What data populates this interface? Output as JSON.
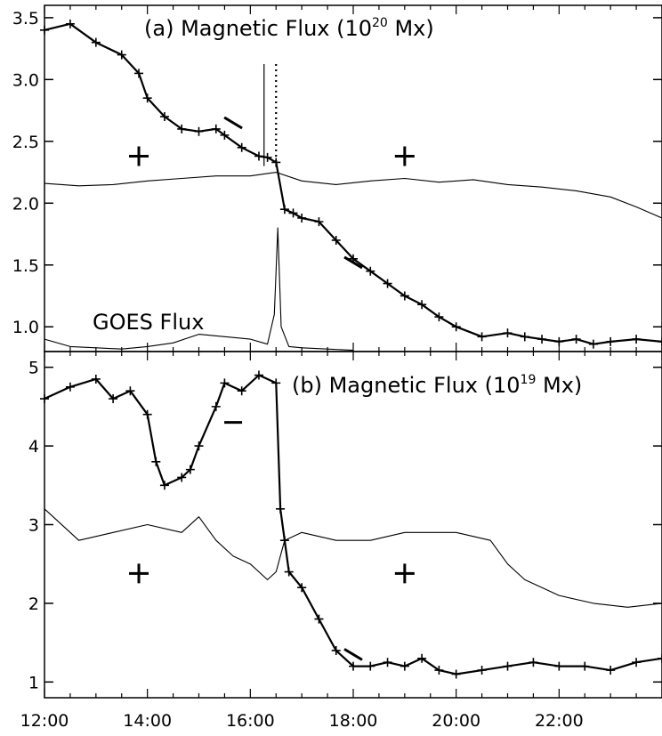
{
  "chart_data": [
    {
      "type": "line",
      "panel": "a",
      "title": {
        "prefix": "(a) Magnetic Flux (10",
        "exponent": "20",
        "suffix": " Mx)"
      },
      "xlim": [
        "12:00",
        "24:00"
      ],
      "ylim": [
        0.8,
        3.6
      ],
      "x_ticks": [
        "12:00",
        "14:00",
        "16:00",
        "18:00",
        "20:00",
        "22:00"
      ],
      "y_ticks": [
        "3.5",
        "3.0",
        "2.5",
        "2.0",
        "1.5",
        "1.0"
      ],
      "y_tick_values": [
        3.5,
        3.0,
        2.5,
        2.0,
        1.5,
        1.0
      ],
      "series": [
        {
          "marker": "plus",
          "style": "thick-line-with-plus-markers",
          "x": [
            "12:00",
            "12:30",
            "13:00",
            "13:30",
            "13:50",
            "14:00",
            "14:20",
            "14:40",
            "15:00",
            "15:20",
            "15:30",
            "15:50",
            "16:10",
            "16:20",
            "16:30",
            "16:40",
            "16:50",
            "17:00",
            "17:20",
            "17:40",
            "18:00",
            "18:20",
            "18:40",
            "19:00",
            "19:20",
            "19:40",
            "20:00",
            "20:30",
            "21:00",
            "21:20",
            "21:40",
            "22:00",
            "22:20",
            "22:40",
            "23:00",
            "23:30",
            "24:00"
          ],
          "y": [
            3.4,
            3.45,
            3.3,
            3.2,
            3.05,
            2.85,
            2.7,
            2.6,
            2.58,
            2.6,
            2.55,
            2.45,
            2.38,
            2.37,
            2.33,
            1.95,
            1.92,
            1.88,
            1.85,
            1.7,
            1.55,
            1.45,
            1.35,
            1.25,
            1.18,
            1.08,
            1.0,
            0.92,
            0.95,
            0.92,
            0.9,
            0.88,
            0.9,
            0.86,
            0.88,
            0.9,
            0.88
          ]
        },
        {
          "style": "thin-line",
          "x": [
            "12:00",
            "12:40",
            "13:20",
            "14:00",
            "14:40",
            "15:20",
            "16:00",
            "16:30",
            "17:00",
            "17:40",
            "18:20",
            "19:00",
            "19:40",
            "20:20",
            "21:00",
            "21:40",
            "22:20",
            "23:00",
            "23:30",
            "24:00"
          ],
          "y": [
            2.16,
            2.14,
            2.15,
            2.18,
            2.2,
            2.22,
            2.22,
            2.25,
            2.18,
            2.15,
            2.18,
            2.2,
            2.17,
            2.19,
            2.15,
            2.13,
            2.1,
            2.05,
            1.97,
            1.88
          ]
        },
        {
          "name": "GOES Flux",
          "style": "thin-line",
          "x": [
            "12:00",
            "12:30",
            "13:00",
            "13:30",
            "14:00",
            "14:30",
            "15:00",
            "15:30",
            "16:00",
            "16:20",
            "16:28",
            "16:32",
            "16:36",
            "16:45",
            "17:00",
            "17:30",
            "18:00"
          ],
          "y": [
            0.9,
            0.84,
            0.83,
            0.82,
            0.84,
            0.87,
            0.94,
            0.92,
            0.9,
            0.86,
            1.1,
            1.8,
            1.0,
            0.84,
            0.83,
            0.82,
            0.81
          ]
        }
      ],
      "markers": {
        "plus_positions": [
          [
            "13:50",
            2.38
          ],
          [
            "19:00",
            2.38
          ]
        ],
        "dashes": [
          [
            "15:40",
            2.65
          ],
          [
            "18:00",
            1.52
          ]
        ],
        "vertical_lines": [
          "16:16",
          "16:30"
        ]
      }
    },
    {
      "type": "line",
      "panel": "b",
      "title": {
        "prefix": "(b) Magnetic Flux (10",
        "exponent": "19",
        "suffix": " Mx)"
      },
      "xlim": [
        "12:00",
        "24:00"
      ],
      "ylim": [
        0.8,
        5.2
      ],
      "x_ticks": [
        "12:00",
        "14:00",
        "16:00",
        "18:00",
        "20:00",
        "22:00"
      ],
      "y_ticks": [
        "5",
        "4",
        "3",
        "2",
        "1"
      ],
      "y_tick_values": [
        5,
        4,
        3,
        2,
        1
      ],
      "series": [
        {
          "marker": "plus",
          "style": "thick-line-with-plus-markers",
          "x": [
            "12:00",
            "12:30",
            "13:00",
            "13:20",
            "13:40",
            "14:00",
            "14:10",
            "14:20",
            "14:40",
            "14:50",
            "15:00",
            "15:20",
            "15:30",
            "15:50",
            "16:10",
            "16:30",
            "16:35",
            "16:40",
            "16:45",
            "17:00",
            "17:20",
            "17:40",
            "18:00",
            "18:20",
            "18:40",
            "19:00",
            "19:20",
            "19:40",
            "20:00",
            "20:30",
            "21:00",
            "21:30",
            "22:00",
            "22:30",
            "23:00",
            "23:30",
            "24:00"
          ],
          "y": [
            4.6,
            4.75,
            4.85,
            4.6,
            4.7,
            4.4,
            3.8,
            3.5,
            3.6,
            3.7,
            4.0,
            4.5,
            4.8,
            4.7,
            4.9,
            4.8,
            3.2,
            2.8,
            2.4,
            2.2,
            1.8,
            1.4,
            1.2,
            1.2,
            1.25,
            1.2,
            1.3,
            1.15,
            1.1,
            1.15,
            1.2,
            1.25,
            1.2,
            1.2,
            1.15,
            1.25,
            1.3
          ]
        },
        {
          "style": "thin-line",
          "x": [
            "12:00",
            "12:40",
            "13:20",
            "14:00",
            "14:40",
            "15:00",
            "15:20",
            "15:40",
            "16:00",
            "16:20",
            "16:30",
            "16:40",
            "17:00",
            "17:40",
            "18:20",
            "19:00",
            "19:40",
            "20:00",
            "20:40",
            "21:00",
            "21:20",
            "21:40",
            "22:00",
            "22:40",
            "23:20",
            "24:00"
          ],
          "y": [
            3.2,
            2.8,
            2.9,
            3.0,
            2.9,
            3.1,
            2.8,
            2.6,
            2.5,
            2.3,
            2.4,
            2.8,
            2.9,
            2.8,
            2.8,
            2.9,
            2.9,
            2.9,
            2.8,
            2.5,
            2.3,
            2.2,
            2.1,
            2.0,
            1.95,
            2.0
          ]
        }
      ],
      "markers": {
        "plus_positions": [
          [
            "13:50",
            2.38
          ],
          [
            "19:00",
            2.38
          ]
        ],
        "dashes": [
          [
            "15:40",
            4.3
          ],
          [
            "18:00",
            1.35
          ]
        ]
      }
    }
  ]
}
